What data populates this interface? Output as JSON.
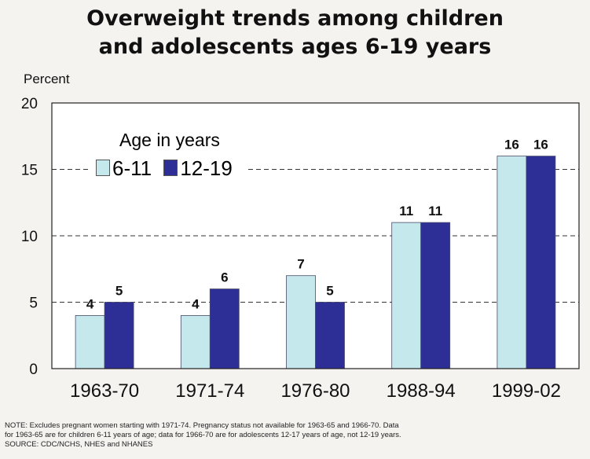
{
  "title_line1": "Overweight trends among children",
  "title_line2": "and adolescents ages 6-19 years",
  "ylabel": "Percent",
  "legend_title": "Age in years",
  "colors": {
    "series1": "#c5e8ec",
    "series2": "#2e2f96",
    "background": "#f4f3f0"
  },
  "chart_data": {
    "type": "bar",
    "title": "Overweight trends among children and adolescents ages 6-19 years",
    "ylabel": "Percent",
    "ylim": [
      0,
      20
    ],
    "yticks": [
      0,
      5,
      10,
      15,
      20
    ],
    "grid": "dashed horizontal at 5, 10, 15",
    "legend_position": "top-left",
    "categories": [
      "1963-70",
      "1971-74",
      "1976-80",
      "1988-94",
      "1999-02"
    ],
    "series": [
      {
        "name": "6-11",
        "values": [
          4,
          4,
          7,
          11,
          16
        ]
      },
      {
        "name": "12-19",
        "values": [
          5,
          6,
          5,
          11,
          16
        ]
      }
    ]
  },
  "note": [
    "NOTE:  Excludes pregnant women starting with 1971-74.  Pregnancy status not available for 1963-65 and 1966-70.  Data",
    "for 1963-65 are for children 6-11 years of age; data for 1966-70 are for adolescents 12-17 years of age, not 12-19 years.",
    "SOURCE: CDC/NCHS, NHES and NHANES"
  ]
}
